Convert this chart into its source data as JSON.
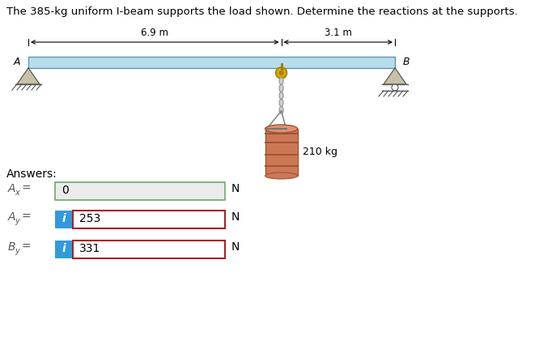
{
  "title": "The 385-kg uniform I-beam supports the load shown. Determine the reactions at the supports.",
  "title_fontsize": 9.5,
  "beam_color": "#b8dcea",
  "beam_edge_color": "#5a9ab0",
  "dim_6p9": "6.9 m",
  "dim_3p1": "3.1 m",
  "load_label": "210 kg",
  "answers_label": "Answers:",
  "ax_value": "0",
  "ay_value": "253",
  "by_value": "331",
  "unit": "N",
  "support_color": "#c8c0a8",
  "ground_color": "#b0a890",
  "barrel_color": "#cd7855",
  "barrel_dark": "#a05535",
  "barrel_mid": "#e09070",
  "chain_color": "#909090",
  "hook_color": "#d4a800",
  "hook_dark": "#a07800",
  "bg_color": "#ffffff",
  "text_color": "#000000",
  "label_color": "#555555",
  "box_bg_ax": "#ebebeb",
  "box_border_ax": "#6aaa6a",
  "box_bg_answer": "#ffffff",
  "box_border_answer": "#aa2222",
  "indicator_bg": "#3399dd",
  "indicator_text": "#ffffff"
}
